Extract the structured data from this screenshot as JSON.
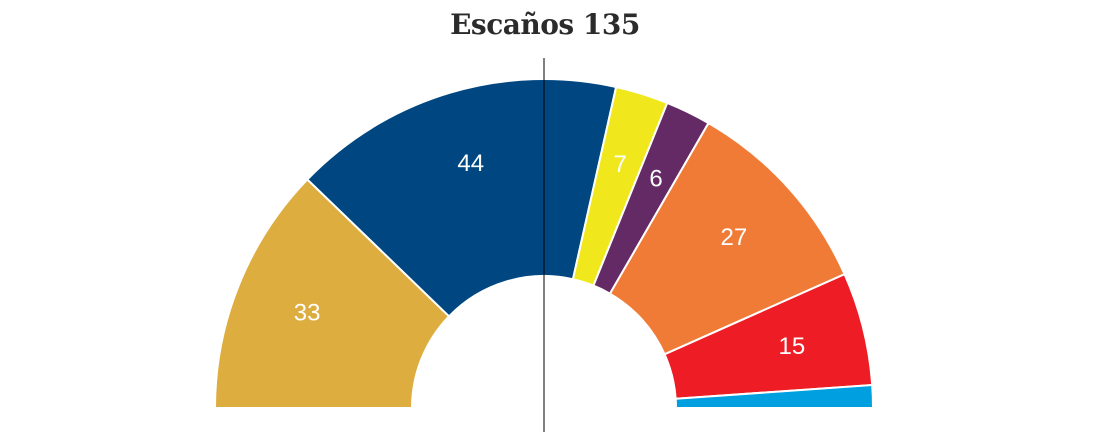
{
  "chart_data": {
    "type": "pie",
    "style": "semicircle-parliament",
    "title": "Escaños 135",
    "total": 135,
    "majority_line": true,
    "segments": [
      {
        "label": "33",
        "value": 33,
        "color": "#DDAD3F"
      },
      {
        "label": "44",
        "value": 44,
        "color": "#004781"
      },
      {
        "label": "7",
        "value": 7,
        "color": "#F0E81C"
      },
      {
        "label": "6",
        "value": 6,
        "color": "#632A65"
      },
      {
        "label": "27",
        "value": 27,
        "color": "#EF7B37"
      },
      {
        "label": "15",
        "value": 15,
        "color": "#EE1C25"
      },
      {
        "label": "",
        "value": 3,
        "color": "#00A0E0"
      }
    ]
  }
}
